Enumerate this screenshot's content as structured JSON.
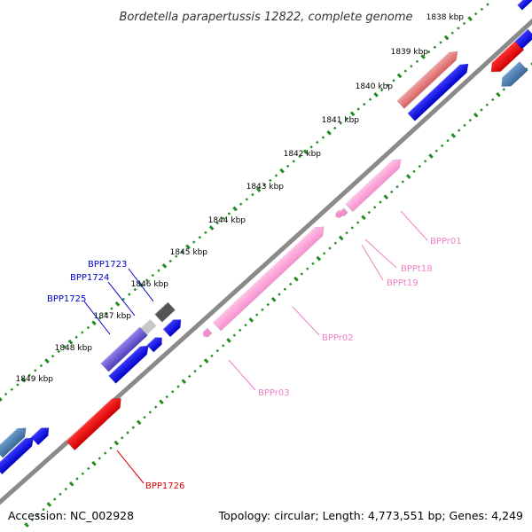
{
  "title": "Bordetella parapertussis 12822, complete genome",
  "footer": {
    "accession": "Accession: NC_002928",
    "summary": "Topology: circular; Length: 4,773,551 bp; Genes: 4,249"
  },
  "kbp_ticks": [
    {
      "label": "1838 kbp"
    },
    {
      "label": "1839 kbp"
    },
    {
      "label": "1840 kbp"
    },
    {
      "label": "1841 kbp"
    },
    {
      "label": "1842 kbp"
    },
    {
      "label": "1843 kbp"
    },
    {
      "label": "1844 kbp"
    },
    {
      "label": "1845 kbp"
    },
    {
      "label": "1846 kbp"
    },
    {
      "label": "1847 kbp"
    },
    {
      "label": "1848 kbp"
    },
    {
      "label": "1849 kbp"
    }
  ],
  "gene_labels": [
    {
      "text": "BPP1723",
      "color": "#0000cc"
    },
    {
      "text": "BPP1724",
      "color": "#0000cc"
    },
    {
      "text": "BPP1725",
      "color": "#0000cc"
    },
    {
      "text": "BPPr01",
      "color": "#ee82c8"
    },
    {
      "text": "BPPt18",
      "color": "#ee82c8"
    },
    {
      "text": "BPPt19",
      "color": "#ee82c8"
    },
    {
      "text": "BPPr02",
      "color": "#ee82c8"
    },
    {
      "text": "BPPr03",
      "color": "#ee82c8"
    },
    {
      "text": "BPP1726",
      "color": "#dd0000"
    }
  ],
  "colors": {
    "backbone": "#8a8a8a",
    "gc_dots": "#228b22",
    "cds": "#0000ee",
    "rrna": "#ff9fd6",
    "trna": "#f38fd0",
    "highlight": "#dd0000",
    "salmon": "#e87878",
    "steel": "#4a7fb0",
    "purple": "#7060d0",
    "dark": "#555555"
  }
}
